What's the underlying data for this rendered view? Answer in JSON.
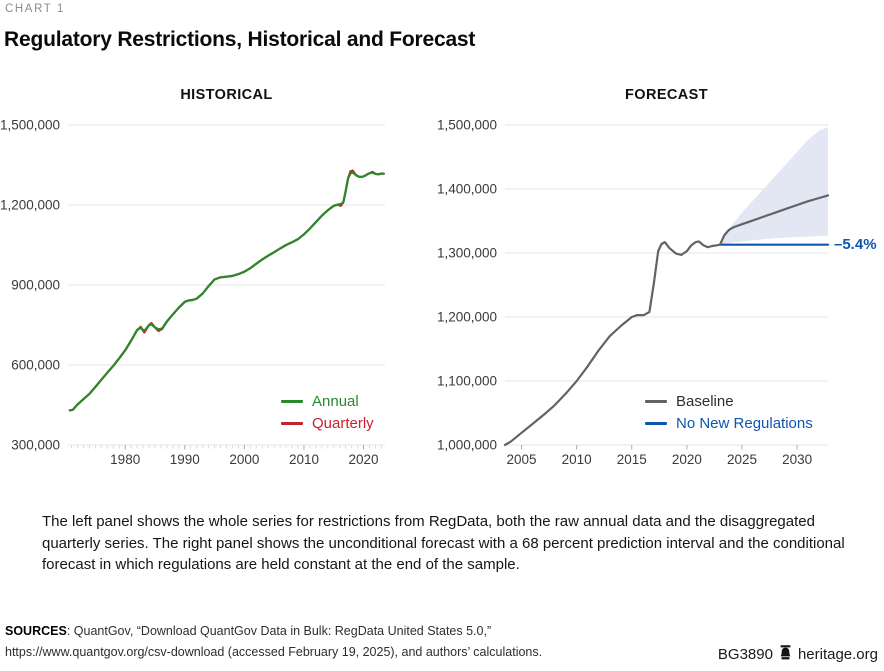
{
  "meta": {
    "eyebrow": "CHART 1",
    "title": "Regulatory Restrictions, Historical and Forecast"
  },
  "note": "The left panel shows the whole series for restrictions from RegData, both the raw annual data and the disaggregated quarterly series. The right panel shows the unconditional forecast with a 68 percent prediction interval and the conditional forecast in which regulations are held constant at the end of the sample.",
  "sources": {
    "label": "SOURCES",
    "line1": ": QuantGov, “Download QuantGov Data in Bulk: RegData United States 5.0,”",
    "line2": "https://www.quantgov.org/csv-download (accessed February 19, 2025), and authors’ calculations."
  },
  "footer": {
    "doc_id": "BG3890",
    "site": "heritage.org",
    "icon": "liberty-bell-icon"
  },
  "colors": {
    "gridline": "#e5e5e5",
    "minor_tick": "#dcdcdc",
    "major_tick": "#ababab",
    "axis_text": "#3a3a3a",
    "annual_green": "#2a8a2b",
    "quarterly_red": "#c8222d",
    "baseline_gray": "#636363",
    "no_new_regs_blue": "#0f56ad",
    "band_fill": "#e3e7f4"
  },
  "chart_data": [
    {
      "type": "line",
      "title": "HISTORICAL",
      "xlim": [
        1970.4,
        2023.6
      ],
      "ylim": [
        300000,
        1500000
      ],
      "grid": "horizontal-only",
      "legend_position": "inside-bottom-right",
      "y_ticks": [
        {
          "label": "1,500,000",
          "value": 1500000
        },
        {
          "label": "1,200,000",
          "value": 1200000
        },
        {
          "label": "900,000",
          "value": 900000
        },
        {
          "label": "600,000",
          "value": 600000
        },
        {
          "label": "300,000",
          "value": 300000
        }
      ],
      "x_ticks": [
        {
          "label": "1980",
          "value": 1980
        },
        {
          "label": "1990",
          "value": 1990
        },
        {
          "label": "2000",
          "value": 2000
        },
        {
          "label": "2010",
          "value": 2010
        },
        {
          "label": "2020",
          "value": 2020
        }
      ],
      "x_minor_ticks": {
        "start": 1971,
        "end": 2023,
        "step": 1
      },
      "series": [
        {
          "name": "Annual",
          "color": "#2a8a2b",
          "label_color": "#2a8a2b",
          "points": [
            [
              1970.7,
              430000
            ],
            [
              1971.2,
              432000
            ],
            [
              1972,
              452000
            ],
            [
              1973,
              472000
            ],
            [
              1974,
              492000
            ],
            [
              1975,
              518000
            ],
            [
              1976,
              545000
            ],
            [
              1977,
              571000
            ],
            [
              1978,
              597000
            ],
            [
              1979,
              625000
            ],
            [
              1980,
              655000
            ],
            [
              1981,
              692000
            ],
            [
              1982,
              731000
            ],
            [
              1982.6,
              739000
            ],
            [
              1983.2,
              728000
            ],
            [
              1984,
              750000
            ],
            [
              1984.4,
              752000
            ],
            [
              1985,
              741000
            ],
            [
              1985.6,
              734000
            ],
            [
              1986.2,
              737000
            ],
            [
              1987,
              763000
            ],
            [
              1988,
              790000
            ],
            [
              1989,
              815000
            ],
            [
              1990,
              837000
            ],
            [
              1990.6,
              842000
            ],
            [
              1991.4,
              844000
            ],
            [
              1992,
              849000
            ],
            [
              1993,
              868000
            ],
            [
              1994,
              896000
            ],
            [
              1995,
              921000
            ],
            [
              1996,
              929000
            ],
            [
              1997,
              931000
            ],
            [
              1998,
              934000
            ],
            [
              1999,
              941000
            ],
            [
              2000,
              950000
            ],
            [
              2001,
              963000
            ],
            [
              2002,
              980000
            ],
            [
              2003,
              996000
            ],
            [
              2004,
              1010000
            ],
            [
              2005,
              1023000
            ],
            [
              2006,
              1037000
            ],
            [
              2007,
              1050000
            ],
            [
              2008,
              1060000
            ],
            [
              2009,
              1072000
            ],
            [
              2010,
              1090000
            ],
            [
              2011,
              1112000
            ],
            [
              2012,
              1136000
            ],
            [
              2013,
              1160000
            ],
            [
              2014,
              1180000
            ],
            [
              2015,
              1197000
            ],
            [
              2015.6,
              1201000
            ],
            [
              2016.2,
              1204000
            ],
            [
              2016.6,
              1210000
            ],
            [
              2017,
              1252000
            ],
            [
              2017.4,
              1300000
            ],
            [
              2017.8,
              1318000
            ],
            [
              2018.2,
              1322000
            ],
            [
              2018.7,
              1312000
            ],
            [
              2019.2,
              1306000
            ],
            [
              2019.7,
              1305000
            ],
            [
              2020.2,
              1309000
            ],
            [
              2020.7,
              1316000
            ],
            [
              2021.1,
              1320000
            ],
            [
              2021.5,
              1321000
            ],
            [
              2022,
              1317000
            ],
            [
              2022.5,
              1315000
            ],
            [
              2023,
              1318000
            ],
            [
              2023.4,
              1317000
            ]
          ]
        },
        {
          "name": "Quarterly",
          "color": "#c8222d",
          "label_color": "#c8222d",
          "points": [
            [
              1970.7,
              430000
            ],
            [
              1971.2,
              432000
            ],
            [
              1972,
              452000
            ],
            [
              1973,
              472000
            ],
            [
              1974,
              492000
            ],
            [
              1975,
              518000
            ],
            [
              1976,
              545000
            ],
            [
              1977,
              571000
            ],
            [
              1978,
              597000
            ],
            [
              1979,
              625000
            ],
            [
              1980,
              655000
            ],
            [
              1981,
              692000
            ],
            [
              1982,
              731000
            ],
            [
              1982.6,
              743000
            ],
            [
              1983.2,
              722000
            ],
            [
              1984,
              750000
            ],
            [
              1984.4,
              757000
            ],
            [
              1985,
              741000
            ],
            [
              1985.6,
              728000
            ],
            [
              1986.2,
              735000
            ],
            [
              1987,
              763000
            ],
            [
              1988,
              790000
            ],
            [
              1989,
              815000
            ],
            [
              1990,
              837000
            ],
            [
              1990.6,
              842000
            ],
            [
              1991.4,
              844000
            ],
            [
              1992,
              849000
            ],
            [
              1993,
              868000
            ],
            [
              1994,
              896000
            ],
            [
              1995,
              921000
            ],
            [
              1996,
              929000
            ],
            [
              1997,
              931000
            ],
            [
              1998,
              934000
            ],
            [
              1999,
              941000
            ],
            [
              2000,
              950000
            ],
            [
              2001,
              963000
            ],
            [
              2002,
              980000
            ],
            [
              2003,
              996000
            ],
            [
              2004,
              1010000
            ],
            [
              2005,
              1023000
            ],
            [
              2006,
              1037000
            ],
            [
              2007,
              1050000
            ],
            [
              2008,
              1060000
            ],
            [
              2009,
              1072000
            ],
            [
              2010,
              1090000
            ],
            [
              2011,
              1112000
            ],
            [
              2012,
              1136000
            ],
            [
              2013,
              1160000
            ],
            [
              2014,
              1180000
            ],
            [
              2015,
              1197000
            ],
            [
              2015.6,
              1201000
            ],
            [
              2016.2,
              1197000
            ],
            [
              2016.6,
              1210000
            ],
            [
              2017,
              1252000
            ],
            [
              2017.4,
              1300000
            ],
            [
              2017.8,
              1326000
            ],
            [
              2018.2,
              1329000
            ],
            [
              2018.7,
              1313000
            ],
            [
              2019.2,
              1306000
            ],
            [
              2019.7,
              1305000
            ],
            [
              2020.2,
              1309000
            ],
            [
              2020.7,
              1316000
            ],
            [
              2021.1,
              1320000
            ],
            [
              2021.5,
              1324000
            ],
            [
              2022,
              1317000
            ],
            [
              2022.5,
              1315000
            ],
            [
              2023,
              1318000
            ],
            [
              2023.4,
              1317000
            ]
          ]
        }
      ]
    },
    {
      "type": "line",
      "title": "FORECAST",
      "xlim": [
        2003.5,
        2032.8
      ],
      "ylim": [
        1000000,
        1500000
      ],
      "grid": "horizontal-only",
      "legend_position": "inside-bottom-right",
      "forecast_start_x": 2023,
      "y_ticks": [
        {
          "label": "1,500,000",
          "value": 1500000
        },
        {
          "label": "1,400,000",
          "value": 1400000
        },
        {
          "label": "1,300,000",
          "value": 1300000
        },
        {
          "label": "1,200,000",
          "value": 1200000
        },
        {
          "label": "1,100,000",
          "value": 1100000
        },
        {
          "label": "1,000,000",
          "value": 1000000
        }
      ],
      "x_ticks": [
        {
          "label": "2005",
          "value": 2005
        },
        {
          "label": "2010",
          "value": 2010
        },
        {
          "label": "2015",
          "value": 2015
        },
        {
          "label": "2020",
          "value": 2020
        },
        {
          "label": "2025",
          "value": 2025
        },
        {
          "label": "2030",
          "value": 2030
        }
      ],
      "band": {
        "label": "68 percent prediction interval",
        "color": "#e3e7f4",
        "upper": [
          [
            2023,
            1313000
          ],
          [
            2023.5,
            1330000
          ],
          [
            2024,
            1342000
          ],
          [
            2025,
            1363000
          ],
          [
            2026,
            1382000
          ],
          [
            2027,
            1401000
          ],
          [
            2028,
            1420000
          ],
          [
            2029,
            1439000
          ],
          [
            2030,
            1458000
          ],
          [
            2031,
            1477000
          ],
          [
            2032,
            1491000
          ],
          [
            2032.8,
            1497000
          ]
        ],
        "lower": [
          [
            2023,
            1313000
          ],
          [
            2023.5,
            1314000
          ],
          [
            2024,
            1316000
          ],
          [
            2025,
            1318000
          ],
          [
            2026,
            1320000
          ],
          [
            2028,
            1323000
          ],
          [
            2030,
            1325000
          ],
          [
            2032.8,
            1327000
          ]
        ]
      },
      "series": [
        {
          "name": "Baseline",
          "color": "#636363",
          "label_color": "#2e2e2e",
          "points": [
            [
              2003.5,
              1000000
            ],
            [
              2004,
              1005000
            ],
            [
              2005,
              1019000
            ],
            [
              2006,
              1033000
            ],
            [
              2007,
              1047000
            ],
            [
              2008,
              1062000
            ],
            [
              2009,
              1080000
            ],
            [
              2010,
              1100000
            ],
            [
              2011,
              1123000
            ],
            [
              2012,
              1148000
            ],
            [
              2013,
              1170000
            ],
            [
              2014,
              1186000
            ],
            [
              2015,
              1200000
            ],
            [
              2015.5,
              1203000
            ],
            [
              2016.1,
              1203000
            ],
            [
              2016.6,
              1208000
            ],
            [
              2017,
              1252000
            ],
            [
              2017.4,
              1303000
            ],
            [
              2017.7,
              1314000
            ],
            [
              2018,
              1317000
            ],
            [
              2018.4,
              1308000
            ],
            [
              2019,
              1299000
            ],
            [
              2019.5,
              1297000
            ],
            [
              2020,
              1303000
            ],
            [
              2020.4,
              1312000
            ],
            [
              2020.8,
              1317000
            ],
            [
              2021.1,
              1318000
            ],
            [
              2021.5,
              1312000
            ],
            [
              2021.9,
              1309000
            ],
            [
              2022.3,
              1311000
            ],
            [
              2022.7,
              1312000
            ],
            [
              2023,
              1313000
            ],
            [
              2023.4,
              1328000
            ],
            [
              2023.8,
              1336000
            ],
            [
              2024.2,
              1340000
            ],
            [
              2025,
              1345000
            ],
            [
              2026,
              1351000
            ],
            [
              2027,
              1357000
            ],
            [
              2028,
              1363000
            ],
            [
              2029,
              1369000
            ],
            [
              2030,
              1375000
            ],
            [
              2031,
              1381000
            ],
            [
              2032,
              1386000
            ],
            [
              2032.8,
              1390000
            ]
          ]
        },
        {
          "name": "No New Regulations",
          "color": "#0f56ad",
          "label_color": "#0f56ad",
          "points": [
            [
              2023,
              1313000
            ],
            [
              2032.8,
              1313000
            ]
          ]
        }
      ],
      "annotation": {
        "text": "–5.4%",
        "color": "#0f56ad",
        "value": -5.4
      }
    }
  ]
}
